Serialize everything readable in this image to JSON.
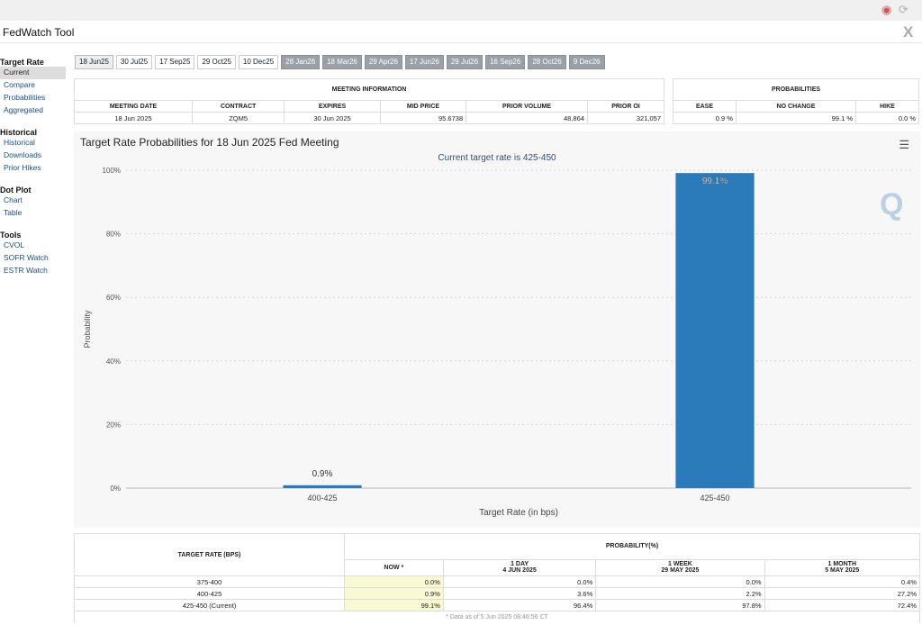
{
  "app": {
    "title": "FedWatch Tool",
    "close": "X"
  },
  "sidebar": {
    "sections": [
      {
        "heading": "Target Rate",
        "items": [
          "Current",
          "Compare",
          "Probabilities",
          "Aggregated"
        ]
      },
      {
        "heading": "Historical",
        "items": [
          "Historical",
          "Downloads",
          "Prior Hikes"
        ]
      },
      {
        "heading": "Dot Plot",
        "items": [
          "Chart",
          "Table"
        ]
      },
      {
        "heading": "Tools",
        "items": [
          "CVOL",
          "SOFR Watch",
          "ESTR Watch"
        ]
      }
    ]
  },
  "tabs": [
    {
      "label": "18 Jun25",
      "state": "active"
    },
    {
      "label": "30 Jul25",
      "state": "normal"
    },
    {
      "label": "17 Sep25",
      "state": "normal"
    },
    {
      "label": "29 Oct25",
      "state": "normal"
    },
    {
      "label": "10 Dec25",
      "state": "normal"
    },
    {
      "label": "28 Jan26",
      "state": "future"
    },
    {
      "label": "18 Mar26",
      "state": "future"
    },
    {
      "label": "29 Apr26",
      "state": "future"
    },
    {
      "label": "17 Jun26",
      "state": "future"
    },
    {
      "label": "29 Jul26",
      "state": "future"
    },
    {
      "label": "16 Sep26",
      "state": "future"
    },
    {
      "label": "28 Oct26",
      "state": "future"
    },
    {
      "label": "9 Dec26",
      "state": "future"
    }
  ],
  "meeting_info": {
    "caption": "MEETING INFORMATION",
    "headers": [
      "MEETING DATE",
      "CONTRACT",
      "EXPIRES",
      "MID PRICE",
      "PRIOR VOLUME",
      "PRIOR OI"
    ],
    "row": [
      "18 Jun 2025",
      "ZQM5",
      "30 Jun 2025",
      "95.6738",
      "48,864",
      "321,057"
    ]
  },
  "probabilities": {
    "caption": "PROBABILITIES",
    "headers": [
      "EASE",
      "NO CHANGE",
      "HIKE"
    ],
    "row": [
      "0.9 %",
      "99.1 %",
      "0.0 %"
    ]
  },
  "chart_data": {
    "type": "bar",
    "title": "Target Rate Probabilities for 18 Jun 2025 Fed Meeting",
    "subtitle": "Current target rate is 425-450",
    "xlabel": "Target Rate (in bps)",
    "ylabel": "Probability",
    "categories": [
      "400-425",
      "425-450"
    ],
    "values": [
      0.9,
      99.1
    ],
    "data_labels": [
      "0.9%",
      "99.1%"
    ],
    "ylim": [
      0,
      100
    ],
    "yticks": [
      "0%",
      "20%",
      "40%",
      "60%",
      "80%",
      "100%"
    ],
    "ytick_values": [
      0,
      20,
      40,
      60,
      80,
      100
    ],
    "grid": true,
    "bar_color": "#2b7bba",
    "menu_icon": "hamburger-icon",
    "watermark_icon": "q-logo-icon"
  },
  "history": {
    "col_target": "TARGET RATE (BPS)",
    "col_prob": "PROBABILITY(%)",
    "cols": [
      {
        "l1": "NOW *",
        "l2": ""
      },
      {
        "l1": "1 DAY",
        "l2": "4 JUN 2025"
      },
      {
        "l1": "1 WEEK",
        "l2": "29 MAY 2025"
      },
      {
        "l1": "1 MONTH",
        "l2": "5 MAY 2025"
      }
    ],
    "rows": [
      {
        "rate": "375-400",
        "vals": [
          "0.0%",
          "0.0%",
          "0.0%",
          "0.4%"
        ]
      },
      {
        "rate": "400-425",
        "vals": [
          "0.9%",
          "3.6%",
          "2.2%",
          "27.2%"
        ]
      },
      {
        "rate": "425-450 (Current)",
        "vals": [
          "99.1%",
          "96.4%",
          "97.8%",
          "72.4%"
        ]
      }
    ],
    "note": "* Data as of 5 Jun 2025 08:46:56 CT"
  },
  "colors": {
    "accent": "#2b7bba",
    "highlight": "#fafad2",
    "future_tab": "#9aa0a6"
  }
}
